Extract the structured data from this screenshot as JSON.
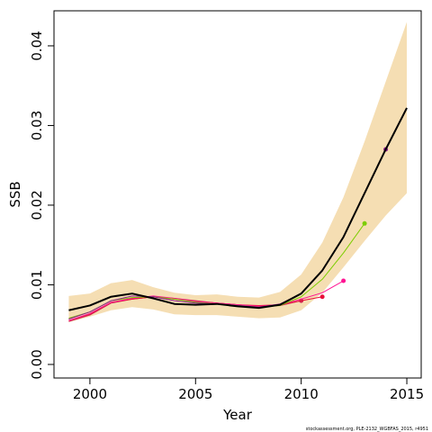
{
  "chart_data": {
    "type": "line",
    "x_label": "Year",
    "y_label": "SSB",
    "footer": "stockassessment.org, PLE-2132_WGBFAS_2015, r4951",
    "x": [
      1999,
      2000,
      2001,
      2002,
      2003,
      2004,
      2005,
      2006,
      2007,
      2008,
      2009,
      2010,
      2011,
      2012,
      2013,
      2014,
      2015
    ],
    "band": {
      "color": "#f5deb3",
      "upper": [
        0.0086,
        0.0089,
        0.0102,
        0.0106,
        0.0097,
        0.009,
        0.0087,
        0.0088,
        0.0085,
        0.0084,
        0.0091,
        0.0113,
        0.0153,
        0.021,
        0.028,
        0.0355,
        0.043
      ],
      "lower": [
        0.0053,
        0.006,
        0.0068,
        0.0072,
        0.0069,
        0.0063,
        0.0062,
        0.0062,
        0.006,
        0.0058,
        0.0059,
        0.0068,
        0.009,
        0.0122,
        0.0155,
        0.0187,
        0.0215
      ]
    },
    "series": [
      {
        "color": "#cd2a50",
        "width": 1,
        "end_marker": true,
        "values": [
          0.0054,
          0.0062,
          0.0077,
          0.0082,
          0.0085,
          0.0083,
          0.008,
          0.0077,
          0.0075,
          0.0073,
          0.0074,
          0.008,
          null,
          null,
          null,
          null,
          null
        ]
      },
      {
        "color": "#e8103a",
        "width": 1,
        "end_marker": true,
        "values": [
          0.0055,
          0.0063,
          0.0078,
          0.0082,
          0.0085,
          0.0082,
          0.0079,
          0.0077,
          0.0075,
          0.0074,
          0.0075,
          0.008,
          0.0085,
          null,
          null,
          null,
          null
        ]
      },
      {
        "color": "#ff1493",
        "width": 1,
        "end_marker": true,
        "values": [
          0.0055,
          0.0064,
          0.0078,
          0.0083,
          0.0086,
          0.0083,
          0.0079,
          0.0077,
          0.0075,
          0.0073,
          0.0075,
          0.0082,
          0.009,
          0.0105,
          null,
          null,
          null
        ]
      },
      {
        "color": "#7ccd00",
        "width": 1,
        "end_marker": true,
        "values": [
          0.0058,
          0.0066,
          0.008,
          0.0084,
          0.0085,
          0.0082,
          0.0078,
          0.0076,
          0.0074,
          0.0072,
          0.0074,
          0.0085,
          0.0107,
          0.014,
          0.0177,
          null,
          null
        ]
      },
      {
        "color": "#8b1a8b",
        "width": 1,
        "end_marker": true,
        "values": [
          0.0057,
          0.0066,
          0.008,
          0.0086,
          0.0085,
          0.008,
          0.0077,
          0.0076,
          0.0074,
          0.0072,
          0.0076,
          0.0089,
          0.0118,
          0.016,
          0.0215,
          0.027,
          null
        ]
      },
      {
        "color": "#000000",
        "width": 2,
        "end_marker": false,
        "values": [
          0.0068,
          0.0074,
          0.0085,
          0.0089,
          0.0083,
          0.0076,
          0.0075,
          0.0076,
          0.0073,
          0.0071,
          0.0075,
          0.0089,
          0.0118,
          0.016,
          0.0215,
          0.027,
          0.0322
        ]
      }
    ],
    "xlim": [
      1998.3,
      2015.68
    ],
    "xticks": [
      2000,
      2005,
      2010,
      2015
    ],
    "ylim": [
      -0.0017,
      0.0444
    ],
    "yticks": [
      {
        "value": 0,
        "label": "0.00"
      },
      {
        "value": 0.01,
        "label": "0.01"
      },
      {
        "value": 0.02,
        "label": "0.02"
      },
      {
        "value": 0.03,
        "label": "0.03"
      },
      {
        "value": 0.04,
        "label": "0.04"
      }
    ]
  }
}
